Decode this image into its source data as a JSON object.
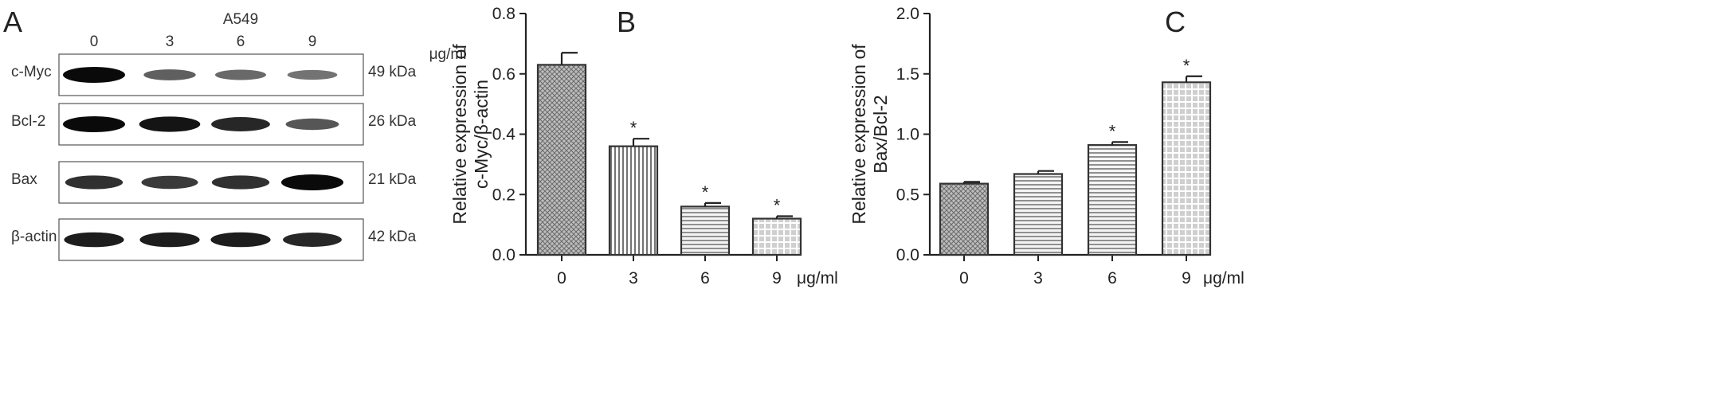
{
  "panels": {
    "a": {
      "letter": "A",
      "cell_line": "A549",
      "concentrations": [
        "0",
        "3",
        "6",
        "9"
      ],
      "unit": "μg/ml",
      "rows": [
        {
          "protein": "c-Myc",
          "size": "49 kDa",
          "intensity": [
            1.0,
            0.55,
            0.5,
            0.45
          ]
        },
        {
          "protein": "Bcl-2",
          "size": "26 kDa",
          "intensity": [
            1.0,
            0.95,
            0.85,
            0.6
          ]
        },
        {
          "protein": "Bax",
          "size": "21 kDa",
          "intensity": [
            0.8,
            0.75,
            0.8,
            1.0
          ]
        },
        {
          "protein": "β-actin",
          "size": "42 kDa",
          "intensity": [
            0.9,
            0.9,
            0.9,
            0.85
          ]
        }
      ]
    },
    "b": {
      "letter": "B"
    },
    "c": {
      "letter": "C"
    }
  },
  "chart_data": [
    {
      "type": "bar",
      "categories": [
        "0",
        "3",
        "6",
        "9"
      ],
      "values": [
        0.63,
        0.36,
        0.16,
        0.12
      ],
      "errors": [
        0.04,
        0.025,
        0.012,
        0.008
      ],
      "significance": [
        "",
        "*",
        "*",
        "*"
      ],
      "xlabel": "μg/ml",
      "ylabel_line1": "Relative expression of",
      "ylabel_line2": "c-Myc/β-actin",
      "ylim": [
        0,
        0.8
      ],
      "yticks": [
        "0.0",
        "0.2",
        "0.4",
        "0.6",
        "0.8"
      ],
      "fill_patterns": [
        "crosshatch",
        "vertical-lines",
        "horizontal-lines",
        "grid"
      ]
    },
    {
      "type": "bar",
      "categories": [
        "0",
        "3",
        "6",
        "9"
      ],
      "values": [
        0.59,
        0.67,
        0.91,
        1.43
      ],
      "errors": [
        0.015,
        0.025,
        0.025,
        0.05
      ],
      "significance": [
        "",
        "",
        "*",
        "*"
      ],
      "xlabel": "μg/ml",
      "ylabel_line1": "Relative expression of",
      "ylabel_line2": "Bax/Bcl-2",
      "ylim": [
        0,
        2.0
      ],
      "yticks": [
        "0.0",
        "0.5",
        "1.0",
        "1.5",
        "2.0"
      ],
      "fill_patterns": [
        "crosshatch",
        "horizontal-lines",
        "horizontal-lines",
        "grid"
      ]
    }
  ]
}
